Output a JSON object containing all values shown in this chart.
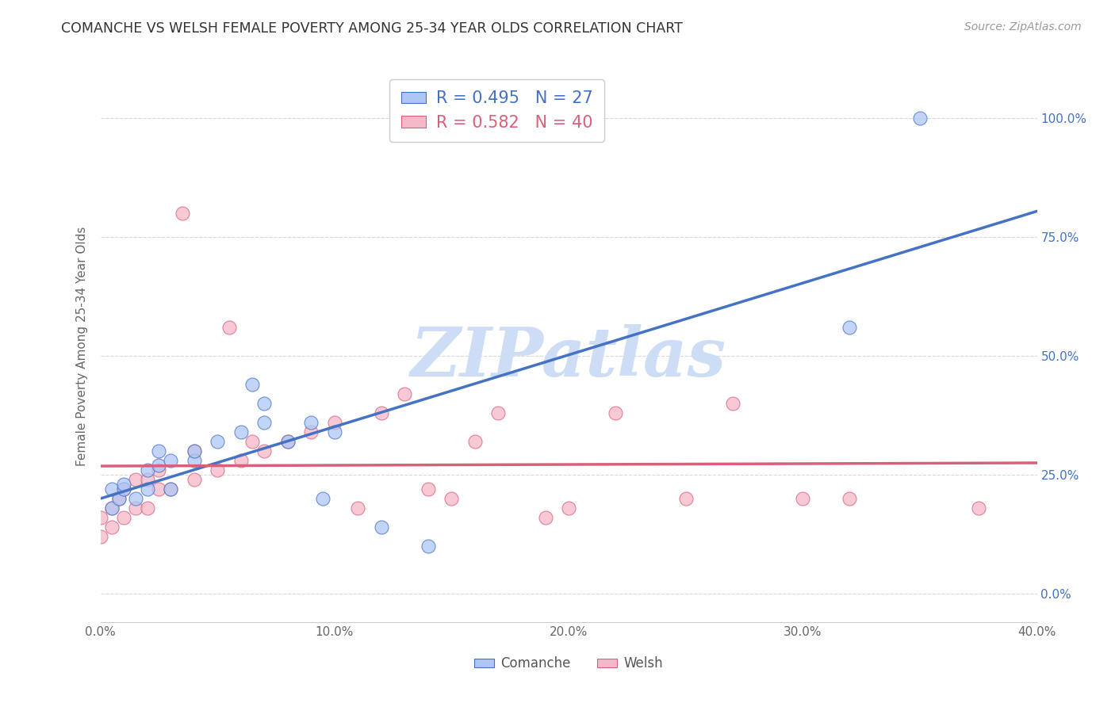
{
  "title": "COMANCHE VS WELSH FEMALE POVERTY AMONG 25-34 YEAR OLDS CORRELATION CHART",
  "source": "Source: ZipAtlas.com",
  "ylabel": "Female Poverty Among 25-34 Year Olds",
  "legend_blue_r": "R = 0.495",
  "legend_blue_n": "N = 27",
  "legend_pink_r": "R = 0.582",
  "legend_pink_n": "N = 40",
  "legend_blue_label": "Comanche",
  "legend_pink_label": "Welsh",
  "xlim": [
    0.0,
    0.4
  ],
  "ylim": [
    -0.06,
    1.1
  ],
  "xtick_labels": [
    "0.0%",
    "10.0%",
    "20.0%",
    "30.0%",
    "40.0%"
  ],
  "xtick_vals": [
    0.0,
    0.1,
    0.2,
    0.3,
    0.4
  ],
  "ytick_labels_right": [
    "0.0%",
    "25.0%",
    "50.0%",
    "75.0%",
    "100.0%"
  ],
  "ytick_vals": [
    0.0,
    0.25,
    0.5,
    0.75,
    1.0
  ],
  "blue_color": "#aec6f5",
  "pink_color": "#f5b8c8",
  "blue_line_color": "#4472C4",
  "pink_line_color": "#d9607a",
  "watermark": "ZIPatlas",
  "watermark_color": "#ccddf5",
  "background_color": "#ffffff",
  "grid_color": "#d8d8d8",
  "comanche_x": [
    0.005,
    0.005,
    0.008,
    0.01,
    0.01,
    0.015,
    0.02,
    0.02,
    0.025,
    0.025,
    0.03,
    0.03,
    0.04,
    0.04,
    0.05,
    0.06,
    0.065,
    0.07,
    0.07,
    0.08,
    0.09,
    0.095,
    0.1,
    0.12,
    0.14,
    0.32,
    0.35
  ],
  "comanche_y": [
    0.18,
    0.22,
    0.2,
    0.22,
    0.23,
    0.2,
    0.22,
    0.26,
    0.27,
    0.3,
    0.22,
    0.28,
    0.28,
    0.3,
    0.32,
    0.34,
    0.44,
    0.36,
    0.4,
    0.32,
    0.36,
    0.2,
    0.34,
    0.14,
    0.1,
    0.56,
    1.0
  ],
  "welsh_x": [
    0.0,
    0.0,
    0.005,
    0.005,
    0.008,
    0.01,
    0.01,
    0.015,
    0.015,
    0.02,
    0.02,
    0.025,
    0.025,
    0.03,
    0.035,
    0.04,
    0.04,
    0.05,
    0.055,
    0.06,
    0.065,
    0.07,
    0.08,
    0.09,
    0.1,
    0.11,
    0.12,
    0.13,
    0.14,
    0.15,
    0.16,
    0.17,
    0.19,
    0.2,
    0.22,
    0.25,
    0.27,
    0.3,
    0.32,
    0.375
  ],
  "welsh_y": [
    0.12,
    0.16,
    0.14,
    0.18,
    0.2,
    0.16,
    0.22,
    0.18,
    0.24,
    0.18,
    0.24,
    0.22,
    0.26,
    0.22,
    0.8,
    0.24,
    0.3,
    0.26,
    0.56,
    0.28,
    0.32,
    0.3,
    0.32,
    0.34,
    0.36,
    0.18,
    0.38,
    0.42,
    0.22,
    0.2,
    0.32,
    0.38,
    0.16,
    0.18,
    0.38,
    0.2,
    0.4,
    0.2,
    0.2,
    0.18
  ]
}
